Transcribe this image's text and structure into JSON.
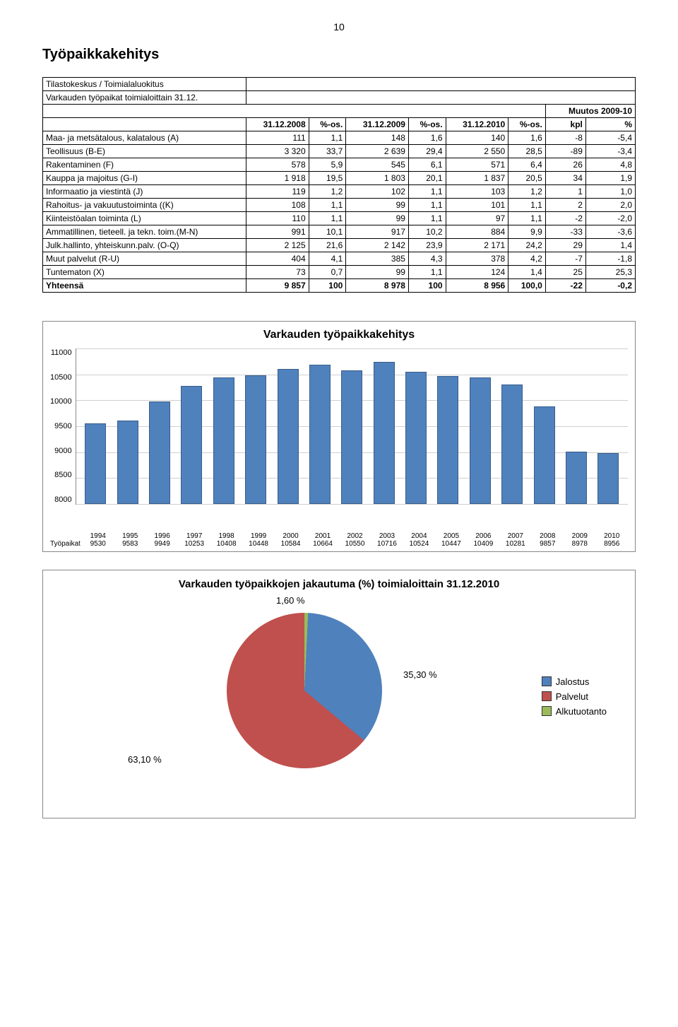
{
  "page_number": "10",
  "heading": "Työpaikkakehitys",
  "table": {
    "meta1": "Tilastokeskus / Toimialaluokitus",
    "meta2": "Varkauden työpaikat toimialoittain 31.12.",
    "muutos_header": "Muutos 2009-10",
    "headers": [
      "31.12.2008",
      "%-os.",
      "31.12.2009",
      "%-os.",
      "31.12.2010",
      "%-os.",
      "kpl",
      "%"
    ],
    "rows": [
      {
        "label": "Maa- ja metsätalous, kalatalous (A)",
        "c": [
          "111",
          "1,1",
          "148",
          "1,6",
          "140",
          "1,6",
          "-8",
          "-5,4"
        ]
      },
      {
        "label": "Teollisuus (B-E)",
        "c": [
          "3 320",
          "33,7",
          "2 639",
          "29,4",
          "2 550",
          "28,5",
          "-89",
          "-3,4"
        ]
      },
      {
        "label": "Rakentaminen (F)",
        "c": [
          "578",
          "5,9",
          "545",
          "6,1",
          "571",
          "6,4",
          "26",
          "4,8"
        ]
      },
      {
        "label": "Kauppa ja majoitus (G-I)",
        "c": [
          "1 918",
          "19,5",
          "1 803",
          "20,1",
          "1 837",
          "20,5",
          "34",
          "1,9"
        ]
      },
      {
        "label": "Informaatio ja viestintä (J)",
        "c": [
          "119",
          "1,2",
          "102",
          "1,1",
          "103",
          "1,2",
          "1",
          "1,0"
        ]
      },
      {
        "label": "Rahoitus- ja vakuutustoiminta ((K)",
        "c": [
          "108",
          "1,1",
          "99",
          "1,1",
          "101",
          "1,1",
          "2",
          "2,0"
        ]
      },
      {
        "label": "Kiinteistöalan toiminta (L)",
        "c": [
          "110",
          "1,1",
          "99",
          "1,1",
          "97",
          "1,1",
          "-2",
          "-2,0"
        ]
      },
      {
        "label": "Ammatillinen, tieteell. ja tekn. toim.(M-N)",
        "c": [
          "991",
          "10,1",
          "917",
          "10,2",
          "884",
          "9,9",
          "-33",
          "-3,6"
        ]
      },
      {
        "label": "Julk.hallinto, yhteiskunn.palv. (O-Q)",
        "c": [
          "2 125",
          "21,6",
          "2 142",
          "23,9",
          "2 171",
          "24,2",
          "29",
          "1,4"
        ]
      },
      {
        "label": "Muut palvelut (R-U)",
        "c": [
          "404",
          "4,1",
          "385",
          "4,3",
          "378",
          "4,2",
          "-7",
          "-1,8"
        ]
      },
      {
        "label": "Tuntematon (X)",
        "c": [
          "73",
          "0,7",
          "99",
          "1,1",
          "124",
          "1,4",
          "25",
          "25,3"
        ]
      }
    ],
    "total": {
      "label": "Yhteensä",
      "c": [
        "9 857",
        "100",
        "8 978",
        "100",
        "8 956",
        "100,0",
        "-22",
        "-0,2"
      ]
    }
  },
  "bar_chart": {
    "title": "Varkauden työpaikkakehitys",
    "ymin": 8000,
    "ymax": 11000,
    "ystep": 500,
    "yticks": [
      "11000",
      "10500",
      "10000",
      "9500",
      "9000",
      "8500",
      "8000"
    ],
    "series_label": "Työpaikat",
    "years": [
      "1994",
      "1995",
      "1996",
      "1997",
      "1998",
      "1999",
      "2000",
      "2001",
      "2002",
      "2003",
      "2004",
      "2005",
      "2006",
      "2007",
      "2008",
      "2009",
      "2010"
    ],
    "values": [
      9530,
      9583,
      9949,
      10253,
      10408,
      10448,
      10584,
      10664,
      10550,
      10716,
      10524,
      10447,
      10409,
      10281,
      9857,
      8978,
      8956
    ],
    "bar_color": "#4f81bd",
    "grid_color": "#d0d0d0"
  },
  "pie_chart": {
    "title": "Varkauden työpaikkojen jakautuma (%) toimialoittain 31.12.2010",
    "slices": [
      {
        "label": "Jalostus",
        "value": 35.3,
        "pct": "35,30 %",
        "color": "#4f81bd"
      },
      {
        "label": "Palvelut",
        "value": 63.1,
        "pct": "63,10 %",
        "color": "#c0504d"
      },
      {
        "label": "Alkutuotanto",
        "value": 1.6,
        "pct": "1,60 %",
        "color": "#9bbb59"
      }
    ]
  }
}
